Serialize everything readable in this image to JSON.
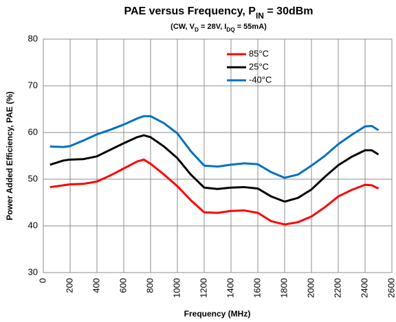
{
  "chart_data": {
    "type": "line",
    "title": [
      "PAE versus Frequency, P",
      "IN",
      " = 30dBm"
    ],
    "subtitle": [
      "(CW, V",
      "D",
      " = 28V, I",
      "DQ",
      " = 55mA)"
    ],
    "x_label": "Frequency (MHz)",
    "y_label": "Power Added Efficiency, PAE (%)",
    "x": [
      50,
      150,
      200,
      300,
      400,
      500,
      600,
      700,
      750,
      800,
      900,
      1000,
      1100,
      1200,
      1300,
      1400,
      1500,
      1600,
      1700,
      1800,
      1900,
      2000,
      2100,
      2200,
      2300,
      2400,
      2450,
      2500
    ],
    "series": [
      {
        "name": "85°C",
        "color": "#ff0000",
        "values": [
          48.3,
          48.7,
          48.9,
          49.0,
          49.5,
          50.8,
          52.3,
          53.8,
          54.2,
          53.3,
          51.0,
          48.5,
          45.5,
          42.9,
          42.8,
          43.2,
          43.3,
          42.8,
          41.0,
          40.3,
          40.8,
          42.0,
          44.0,
          46.3,
          47.7,
          48.8,
          48.7,
          48.0
        ]
      },
      {
        "name": "25°C",
        "color": "#000000",
        "values": [
          53.1,
          54.0,
          54.2,
          54.3,
          54.9,
          56.3,
          57.7,
          59.0,
          59.4,
          59.0,
          57.0,
          54.5,
          51.0,
          48.2,
          47.9,
          48.2,
          48.3,
          48.0,
          46.3,
          45.2,
          46.0,
          47.8,
          50.5,
          53.0,
          54.8,
          56.2,
          56.2,
          55.3
        ]
      },
      {
        "name": "-40°C",
        "color": "#0070c0",
        "values": [
          57.0,
          56.9,
          57.1,
          58.3,
          59.6,
          60.6,
          61.7,
          63.0,
          63.5,
          63.5,
          62.0,
          59.8,
          56.0,
          52.9,
          52.7,
          53.1,
          53.4,
          53.2,
          51.5,
          50.3,
          51.0,
          52.9,
          55.0,
          57.5,
          59.5,
          61.3,
          61.4,
          60.5
        ]
      }
    ],
    "xlim": [
      0,
      2600
    ],
    "xticks": [
      0,
      200,
      400,
      600,
      800,
      1000,
      1200,
      1400,
      1600,
      1800,
      2000,
      2200,
      2400,
      2600
    ],
    "ylim": [
      30,
      80
    ],
    "yticks": [
      30,
      40,
      50,
      60,
      70,
      80
    ],
    "grid": true,
    "legend": "top-center"
  }
}
